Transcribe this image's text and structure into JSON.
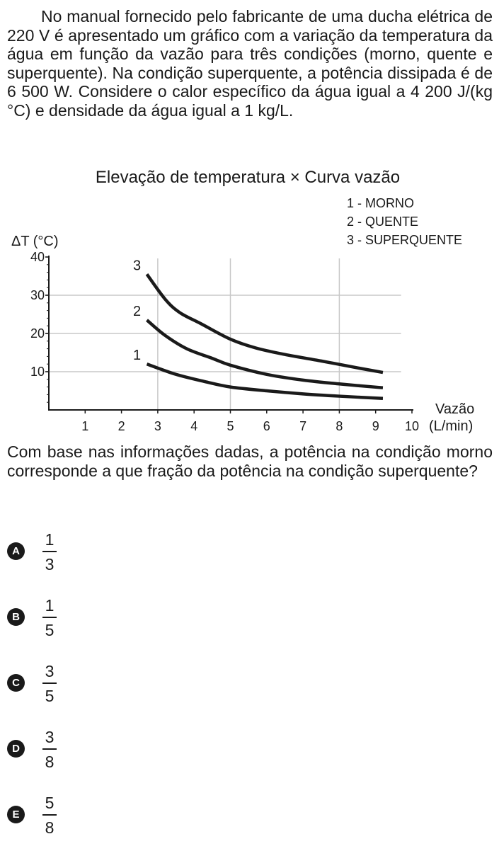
{
  "intro": "No manual fornecido pelo fabricante de uma ducha elétrica de 220 V é apresentado um gráfico com a variação da temperatura da água em função da vazão para três condições (morno, quente e superquente). Na condição superquente, a potência dissipada é de 6 500 W. Considere o calor específico da água igual a 4 200 J/(kg °C) e densidade da água igual a 1 kg/L.",
  "chart_data": {
    "type": "line",
    "title": "Elevação de temperatura × Curva vazão",
    "ylabel": "ΔT (°C)",
    "xlabel_line1": "Vazão",
    "xlabel_line2": "(L/min)",
    "xlim": [
      0,
      10
    ],
    "ylim": [
      0,
      40
    ],
    "x_ticks": [
      "1",
      "2",
      "3",
      "4",
      "5",
      "6",
      "7",
      "8",
      "9",
      "10"
    ],
    "y_ticks": [
      "10",
      "20",
      "30",
      "40"
    ],
    "grid": "gridlines at x = 3, 5, 8 and y = 10, 20, 30",
    "legend": {
      "placement": "top-right",
      "entries": [
        "1 - MORNO",
        "2 - QUENTE",
        "3 - SUPERQUENTE"
      ]
    },
    "series": [
      {
        "label": "1",
        "x": [
          2.7,
          3.5,
          4.3,
          5.0,
          6.0,
          7.0,
          8.0,
          9.2
        ],
        "y": [
          12,
          9.3,
          7.4,
          6.0,
          5.0,
          4.2,
          3.6,
          3.0
        ]
      },
      {
        "label": "2",
        "x": [
          2.7,
          3.2,
          3.8,
          4.5,
          5.0,
          6.0,
          7.0,
          8.0,
          9.2
        ],
        "y": [
          23.5,
          19.5,
          16.0,
          13.5,
          11.7,
          9.3,
          7.8,
          6.8,
          5.8
        ]
      },
      {
        "label": "3",
        "x": [
          2.7,
          3.2,
          3.6,
          4.2,
          5.0,
          5.7,
          6.5,
          7.5,
          8.5,
          9.2
        ],
        "y": [
          35.5,
          29.0,
          25.5,
          22.5,
          18.5,
          16.2,
          14.5,
          12.8,
          11.0,
          9.8
        ]
      }
    ]
  },
  "question": "Com base nas informações dadas, a potência na condição morno corresponde a que fração da potência na condição superquente?",
  "options": [
    {
      "letter": "A",
      "numerator": "1",
      "denominator": "3"
    },
    {
      "letter": "B",
      "numerator": "1",
      "denominator": "5"
    },
    {
      "letter": "C",
      "numerator": "3",
      "denominator": "5"
    },
    {
      "letter": "D",
      "numerator": "3",
      "denominator": "8"
    },
    {
      "letter": "E",
      "numerator": "5",
      "denominator": "8"
    }
  ]
}
